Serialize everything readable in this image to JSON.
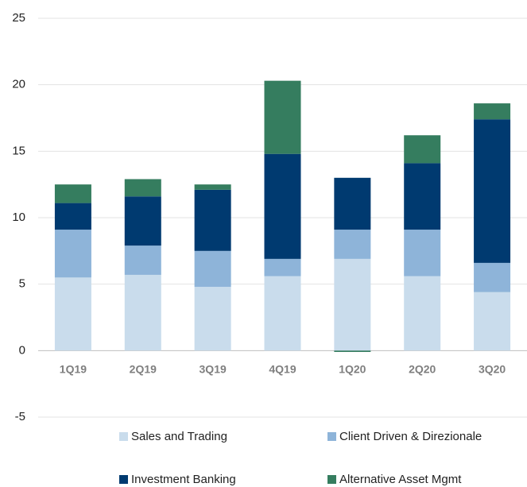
{
  "chart_data": {
    "type": "stacked_bar",
    "categories": [
      "1Q19",
      "2Q19",
      "3Q19",
      "4Q19",
      "1Q20",
      "2Q20",
      "3Q20"
    ],
    "series": [
      {
        "name": "Sales and Trading",
        "color": "#c9dcec",
        "values": [
          5.5,
          5.7,
          4.8,
          5.6,
          6.9,
          5.6,
          4.4
        ]
      },
      {
        "name": "Client Driven & Direzionale",
        "color": "#8eb4d9",
        "values": [
          3.6,
          2.2,
          2.7,
          1.3,
          2.2,
          3.5,
          2.2
        ]
      },
      {
        "name": "Investment Banking",
        "color": "#003a70",
        "values": [
          2.0,
          3.7,
          4.6,
          7.9,
          3.9,
          5.0,
          10.8
        ]
      },
      {
        "name": "Alternative Asset Mgmt",
        "color": "#357d5f",
        "values": [
          1.4,
          1.3,
          0.4,
          5.5,
          -0.1,
          2.1,
          1.2
        ]
      }
    ],
    "ylim": [
      -5,
      25
    ],
    "yticks": [
      -5,
      0,
      5,
      10,
      15,
      20,
      25
    ],
    "grid": true
  }
}
